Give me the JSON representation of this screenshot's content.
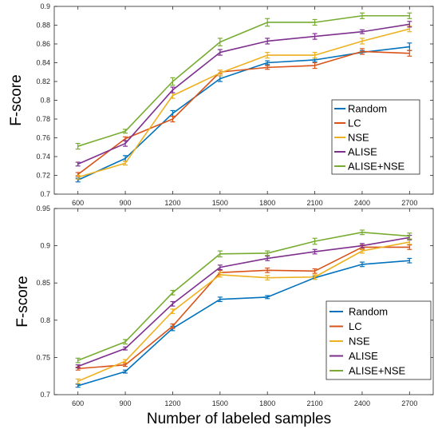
{
  "chart_data": [
    {
      "type": "line",
      "ylabel": "F-score",
      "xlabel": "",
      "x": [
        600,
        900,
        1200,
        1500,
        1800,
        2100,
        2400,
        2700
      ],
      "xticks": [
        "600",
        "900",
        "1200",
        "1500",
        "1800",
        "2100",
        "2400",
        "2700"
      ],
      "ylim": [
        0.7,
        0.9
      ],
      "yticks": [
        "0.7",
        "0.72",
        "0.74",
        "0.76",
        "0.78",
        "0.8",
        "0.82",
        "0.84",
        "0.86",
        "0.88",
        "0.9"
      ],
      "legend_position": "right",
      "error_bars": true,
      "series": [
        {
          "name": "Random",
          "color": "#0072BD",
          "values": [
            0.715,
            0.738,
            0.786,
            0.823,
            0.84,
            0.843,
            0.851,
            0.857
          ],
          "err": [
            0.002,
            0.003,
            0.003,
            0.003,
            0.002,
            0.002,
            0.002,
            0.004
          ]
        },
        {
          "name": "LC",
          "color": "#D95319",
          "values": [
            0.721,
            0.759,
            0.78,
            0.83,
            0.835,
            0.837,
            0.852,
            0.85
          ],
          "err": [
            0.002,
            0.002,
            0.003,
            0.002,
            0.002,
            0.003,
            0.003,
            0.003
          ]
        },
        {
          "name": "NSE",
          "color": "#EDB120",
          "values": [
            0.718,
            0.733,
            0.805,
            0.829,
            0.848,
            0.848,
            0.863,
            0.876
          ],
          "err": [
            0.002,
            0.002,
            0.003,
            0.003,
            0.003,
            0.003,
            0.003,
            0.003
          ]
        },
        {
          "name": "ALISE",
          "color": "#7E2F8E",
          "values": [
            0.732,
            0.754,
            0.811,
            0.851,
            0.863,
            0.868,
            0.873,
            0.881
          ],
          "err": [
            0.002,
            0.003,
            0.003,
            0.003,
            0.003,
            0.003,
            0.002,
            0.003
          ]
        },
        {
          "name": "ALISE+NSE",
          "color": "#77AC30",
          "values": [
            0.751,
            0.767,
            0.82,
            0.862,
            0.883,
            0.883,
            0.89,
            0.89
          ],
          "err": [
            0.003,
            0.002,
            0.004,
            0.004,
            0.004,
            0.003,
            0.003,
            0.003
          ]
        }
      ]
    },
    {
      "type": "line",
      "ylabel": "F-score",
      "xlabel": "Number of labeled samples",
      "x": [
        600,
        900,
        1200,
        1500,
        1800,
        2100,
        2400,
        2700
      ],
      "xticks": [
        "600",
        "900",
        "1200",
        "1500",
        "1800",
        "2100",
        "2400",
        "2700"
      ],
      "ylim": [
        0.7,
        0.95
      ],
      "yticks": [
        "0.7",
        "0.75",
        "0.8",
        "0.85",
        "0.9",
        "0.95"
      ],
      "legend_position": "bottom-right",
      "error_bars": true,
      "series": [
        {
          "name": "Random",
          "color": "#0072BD",
          "values": [
            0.712,
            0.731,
            0.789,
            0.828,
            0.831,
            0.857,
            0.875,
            0.88
          ],
          "err": [
            0.002,
            0.002,
            0.003,
            0.003,
            0.002,
            0.002,
            0.003,
            0.003
          ]
        },
        {
          "name": "LC",
          "color": "#D95319",
          "values": [
            0.735,
            0.74,
            0.792,
            0.864,
            0.867,
            0.866,
            0.898,
            0.898
          ],
          "err": [
            0.002,
            0.002,
            0.003,
            0.003,
            0.003,
            0.003,
            0.003,
            0.003
          ]
        },
        {
          "name": "NSE",
          "color": "#EDB120",
          "values": [
            0.718,
            0.745,
            0.812,
            0.861,
            0.857,
            0.858,
            0.893,
            0.905
          ],
          "err": [
            0.003,
            0.002,
            0.003,
            0.003,
            0.003,
            0.003,
            0.003,
            0.003
          ]
        },
        {
          "name": "ALISE",
          "color": "#7E2F8E",
          "values": [
            0.738,
            0.762,
            0.822,
            0.871,
            0.883,
            0.892,
            0.9,
            0.911
          ],
          "err": [
            0.002,
            0.002,
            0.003,
            0.003,
            0.003,
            0.003,
            0.003,
            0.003
          ]
        },
        {
          "name": "ALISE+NSE",
          "color": "#77AC30",
          "values": [
            0.746,
            0.771,
            0.837,
            0.889,
            0.89,
            0.906,
            0.918,
            0.913
          ],
          "err": [
            0.003,
            0.003,
            0.003,
            0.004,
            0.003,
            0.004,
            0.003,
            0.004
          ]
        }
      ]
    }
  ]
}
